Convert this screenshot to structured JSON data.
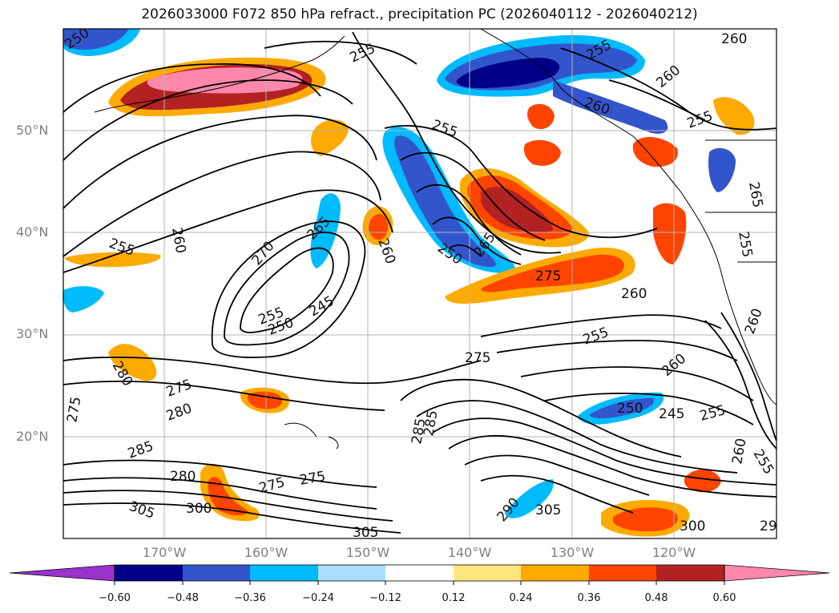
{
  "title": "2026033000 F072 850 hPa refract., precipitation PC (2026040112 - 2026040212)",
  "map": {
    "lat_labels": [
      "50°N",
      "40°N",
      "30°N",
      "20°N"
    ],
    "lon_labels": [
      "170°W",
      "160°W",
      "150°W",
      "140°W",
      "130°W",
      "120°W"
    ],
    "contour_labels": [
      "250",
      "255",
      "260",
      "260",
      "260",
      "255",
      "255",
      "255",
      "255",
      "265",
      "270",
      "260",
      "250",
      "245",
      "275",
      "265",
      "250",
      "255",
      "260",
      "275",
      "280",
      "280",
      "285",
      "275",
      "275",
      "285",
      "285",
      "250",
      "245",
      "255",
      "260",
      "255",
      "260",
      "280",
      "275",
      "275",
      "305",
      "300",
      "290",
      "305",
      "305",
      "300",
      "29",
      "255",
      "260",
      "265",
      "255",
      "260"
    ]
  },
  "colorbar": {
    "levels": [
      "−0.60",
      "−0.48",
      "−0.36",
      "−0.24",
      "−0.12",
      "0.12",
      "0.24",
      "0.36",
      "0.48",
      "0.60"
    ],
    "colors": [
      "#9933cc",
      "#000088",
      "#3355cc",
      "#00bbff",
      "#aaddff",
      "#ffffff",
      "#ffe680",
      "#ffaa00",
      "#ff4400",
      "#b22222",
      "#ff88aa"
    ]
  }
}
